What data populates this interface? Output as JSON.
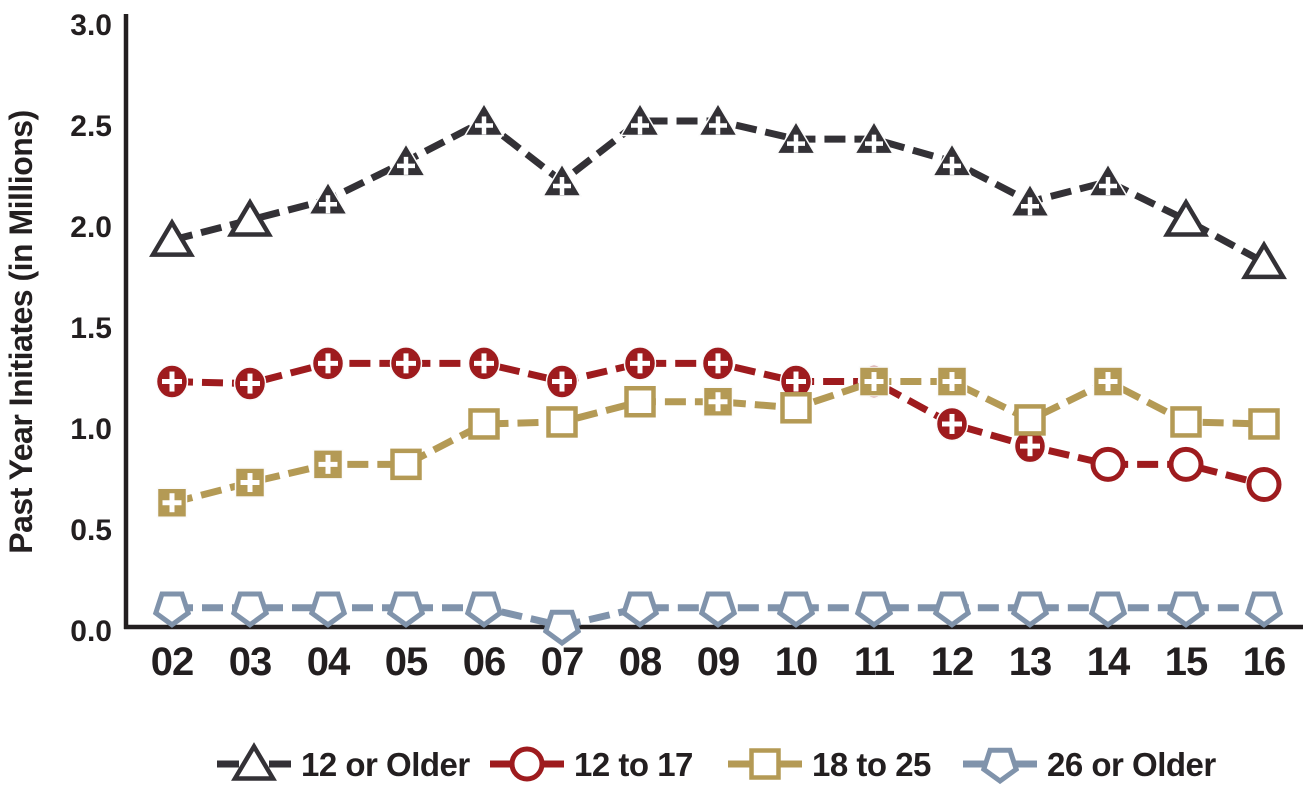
{
  "chart_data": {
    "type": "line",
    "title": "",
    "xlabel": "",
    "ylabel": "Past Year Initiates (in Millions)",
    "ylim": [
      0.0,
      3.0
    ],
    "ytick_labels": [
      "3.0",
      "2.5",
      "2.0",
      "1.5",
      "1.0",
      "0.5",
      "0.0"
    ],
    "x_categories": [
      "02",
      "03",
      "04",
      "05",
      "06",
      "07",
      "08",
      "09",
      "10",
      "11",
      "12",
      "13",
      "14",
      "15",
      "16"
    ],
    "grid": "off",
    "legend_position": "bottom",
    "colors": {
      "text": "#231f20",
      "axis": "#231f20",
      "series_12_or_older": "#333136",
      "series_12_to_17": "#9e1b1e",
      "series_18_to_25": "#b49a55",
      "series_26_or_older": "#8093ab"
    },
    "series": [
      {
        "name": "12 or Older",
        "marker": "triangle",
        "color": "#333136",
        "values": [
          1.93,
          2.03,
          2.13,
          2.32,
          2.52,
          2.22,
          2.52,
          2.52,
          2.43,
          2.43,
          2.32,
          2.12,
          2.22,
          2.03,
          1.82
        ],
        "plus_marker": [
          false,
          false,
          true,
          true,
          true,
          true,
          true,
          true,
          true,
          true,
          true,
          true,
          true,
          false,
          false
        ]
      },
      {
        "name": "12 to 17",
        "marker": "circle",
        "color": "#9e1b1e",
        "values": [
          1.23,
          1.22,
          1.32,
          1.32,
          1.32,
          1.23,
          1.32,
          1.32,
          1.23,
          1.23,
          1.02,
          0.91,
          0.82,
          0.82,
          0.72
        ],
        "plus_marker": [
          true,
          true,
          true,
          true,
          true,
          true,
          true,
          true,
          true,
          true,
          true,
          true,
          false,
          false,
          false
        ]
      },
      {
        "name": "18 to 25",
        "marker": "square",
        "color": "#b49a55",
        "values": [
          0.63,
          0.73,
          0.82,
          0.82,
          1.02,
          1.03,
          1.13,
          1.13,
          1.1,
          1.23,
          1.23,
          1.04,
          1.23,
          1.03,
          1.02
        ],
        "plus_marker": [
          true,
          true,
          true,
          false,
          false,
          false,
          false,
          true,
          false,
          true,
          true,
          false,
          true,
          false,
          false
        ]
      },
      {
        "name": "26 or Older",
        "marker": "pentagon",
        "color": "#8093ab",
        "values": [
          0.11,
          0.11,
          0.11,
          0.11,
          0.11,
          0.02,
          0.11,
          0.11,
          0.11,
          0.11,
          0.11,
          0.11,
          0.11,
          0.11,
          0.11
        ],
        "plus_marker": [
          false,
          false,
          false,
          false,
          false,
          false,
          false,
          false,
          false,
          false,
          false,
          false,
          false,
          false,
          false
        ]
      }
    ]
  }
}
